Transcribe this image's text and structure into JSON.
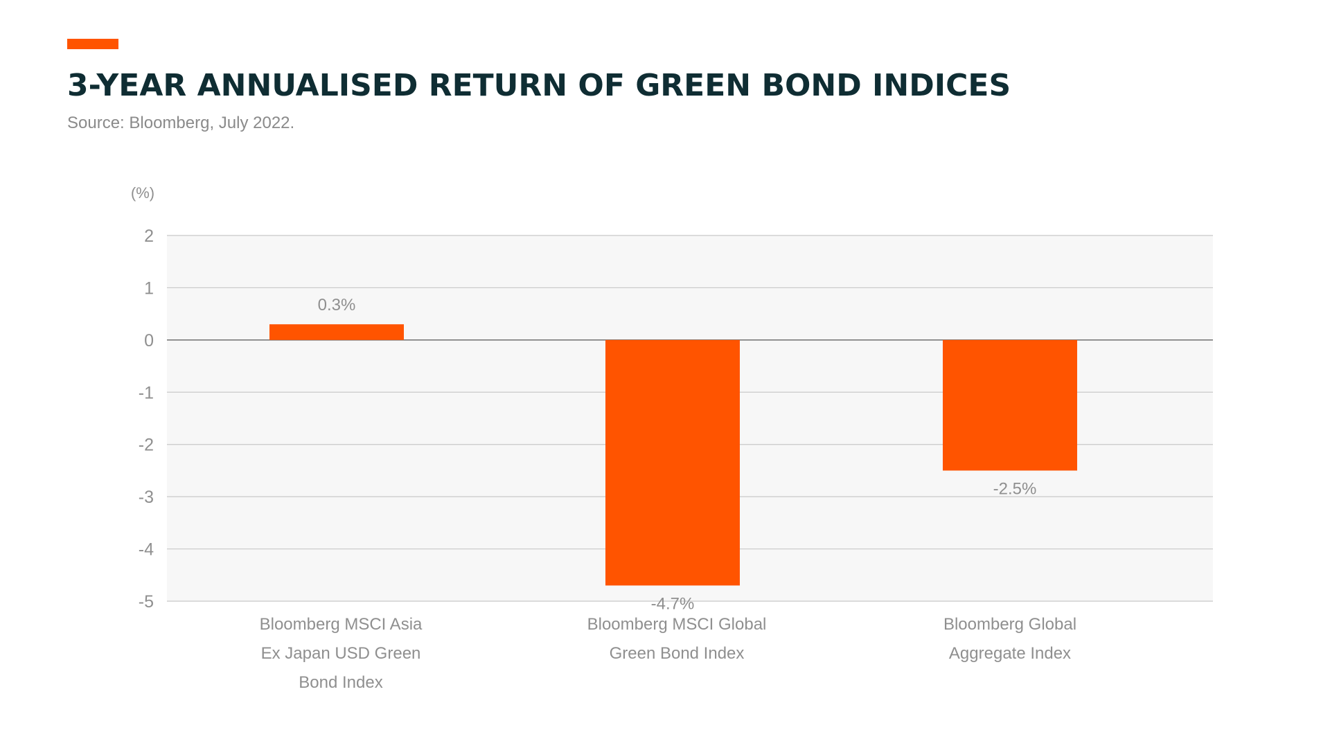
{
  "header": {
    "title": "3-YEAR ANNUALISED RETURN OF GREEN BOND INDICES",
    "subtitle": "Source: Bloomberg, July 2022."
  },
  "colors": {
    "accent": "#ff5400",
    "bar": "#ff5400",
    "title": "#0f2d33",
    "plot_background": "#f7f7f7",
    "gridline": "#c8c8c8",
    "text_muted": "#8f8f8f"
  },
  "chart_data": {
    "type": "bar",
    "title": "3-YEAR ANNUALISED RETURN OF GREEN BOND INDICES",
    "subtitle": "Source: Bloomberg, July 2022.",
    "unit_label": "(%)",
    "categories": [
      [
        "Bloomberg MSCI Asia",
        "Ex Japan USD Green",
        "Bond Index"
      ],
      [
        "Bloomberg MSCI Global",
        "Green Bond Index"
      ],
      [
        "Bloomberg Global",
        "Aggregate Index"
      ]
    ],
    "values": [
      0.3,
      -4.7,
      -2.5
    ],
    "data_labels": [
      "0.3%",
      "-4.7%",
      "-2.5%"
    ],
    "ylim": [
      -5,
      2
    ],
    "yticks": [
      2,
      1,
      0,
      -1,
      -2,
      -3,
      -4,
      -5
    ],
    "grid": true,
    "legend": "none"
  }
}
